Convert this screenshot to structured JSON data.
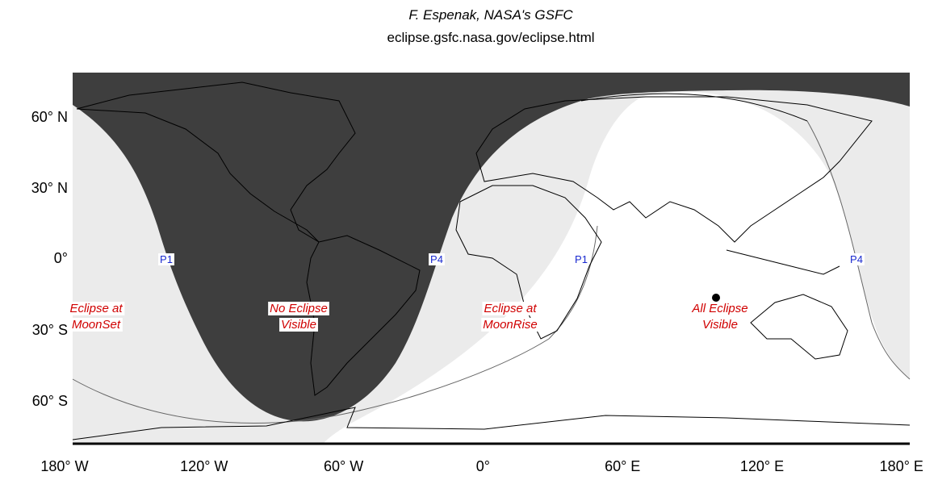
{
  "header": {
    "author": "F. Espenak, NASA's GSFC",
    "url": "eclipse.gsfc.nasa.gov/eclipse.html"
  },
  "lat_labels": [
    "60° N",
    "30° N",
    "0°",
    "30° S",
    "60° S"
  ],
  "lon_labels": [
    "180° W",
    "120° W",
    "60° W",
    "0°",
    "60° E",
    "120° E",
    "180° E"
  ],
  "regions": [
    {
      "lines": [
        "Eclipse at",
        "MoonSet"
      ]
    },
    {
      "lines": [
        "No Eclipse",
        "Visible"
      ]
    },
    {
      "lines": [
        "Eclipse at",
        "MoonRise"
      ]
    },
    {
      "lines": [
        "All Eclipse",
        "Visible"
      ]
    }
  ],
  "contacts": [
    "P1",
    "P4",
    "P1",
    "P4"
  ]
}
